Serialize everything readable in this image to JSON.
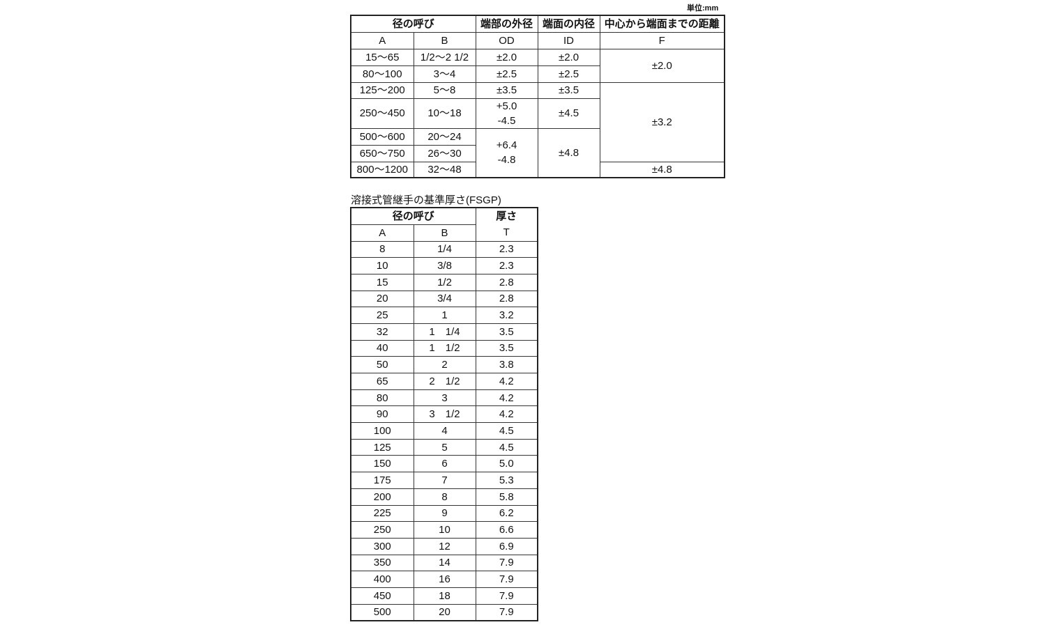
{
  "unit_label": "単位:mm",
  "tolerance_table": {
    "headers": {
      "nominal": "径の呼び",
      "a": "A",
      "b": "B",
      "od_title": "端部の外径",
      "od": "OD",
      "id_title": "端面の内径",
      "id": "ID",
      "f_title": "中心から端面までの距離",
      "f": "F"
    },
    "rows": [
      {
        "a": "15〜65",
        "b": "1/2〜2 1/2",
        "od": "±2.0",
        "id": "±2.0"
      },
      {
        "a": "80〜100",
        "b": "3〜4",
        "od": "±2.5",
        "id": "±2.5"
      },
      {
        "a": "125〜200",
        "b": "5〜8",
        "od": "±3.5",
        "id": "±3.5"
      },
      {
        "a": "250〜450",
        "b": "10〜18",
        "od": "+5.0\n-4.5",
        "id": "±4.5"
      },
      {
        "a": "500〜600",
        "b": "20〜24"
      },
      {
        "a": "650〜750",
        "b": "26〜30"
      },
      {
        "a": "800〜1200",
        "b": "32〜48"
      }
    ],
    "merged": {
      "od_rows_5_7": "+6.4\n-4.8",
      "id_rows_5_7": "±4.8",
      "f_rows_1_2": "±2.0",
      "f_rows_3_6": "±3.2",
      "f_row_7": "±4.8"
    }
  },
  "thickness_table": {
    "title": "溶接式管継手の基準厚さ(FSGP)",
    "headers": {
      "nominal": "径の呼び",
      "a": "A",
      "b": "B",
      "t_title": "厚さ",
      "t": "T"
    },
    "rows": [
      [
        "8",
        "1/4",
        "2.3"
      ],
      [
        "10",
        "3/8",
        "2.3"
      ],
      [
        "15",
        "1/2",
        "2.8"
      ],
      [
        "20",
        "3/4",
        "2.8"
      ],
      [
        "25",
        "1",
        "3.2"
      ],
      [
        "32",
        "1　1/4",
        "3.5"
      ],
      [
        "40",
        "1　1/2",
        "3.5"
      ],
      [
        "50",
        "2",
        "3.8"
      ],
      [
        "65",
        "2　1/2",
        "4.2"
      ],
      [
        "80",
        "3",
        "4.2"
      ],
      [
        "90",
        "3　1/2",
        "4.2"
      ],
      [
        "100",
        "4",
        "4.5"
      ],
      [
        "125",
        "5",
        "4.5"
      ],
      [
        "150",
        "6",
        "5.0"
      ],
      [
        "175",
        "7",
        "5.3"
      ],
      [
        "200",
        "8",
        "5.8"
      ],
      [
        "225",
        "9",
        "6.2"
      ],
      [
        "250",
        "10",
        "6.6"
      ],
      [
        "300",
        "12",
        "6.9"
      ],
      [
        "350",
        "14",
        "7.9"
      ],
      [
        "400",
        "16",
        "7.9"
      ],
      [
        "450",
        "18",
        "7.9"
      ],
      [
        "500",
        "20",
        "7.9"
      ]
    ]
  }
}
